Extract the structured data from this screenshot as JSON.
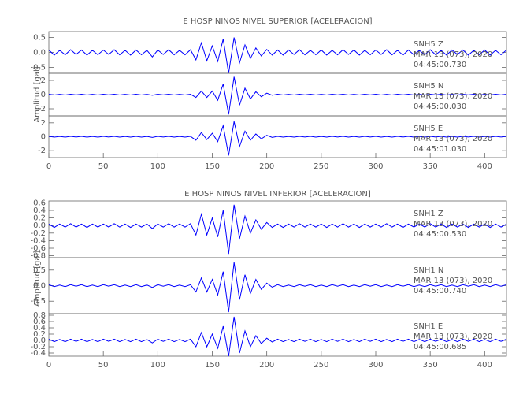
{
  "chart_data": [
    {
      "type": "line",
      "title": "E HOSP NINOS NIVEL SUPERIOR [ACELERACION]",
      "ylabel": "Amplitud [gal]",
      "color": "#0000ff",
      "xlim": [
        0,
        420
      ],
      "xticks": [
        0,
        50,
        100,
        150,
        200,
        250,
        300,
        350,
        400
      ],
      "x": [
        0,
        5,
        10,
        15,
        20,
        25,
        30,
        35,
        40,
        45,
        50,
        55,
        60,
        65,
        70,
        75,
        80,
        85,
        90,
        95,
        100,
        105,
        110,
        115,
        120,
        125,
        130,
        135,
        140,
        145,
        150,
        155,
        160,
        165,
        170,
        175,
        180,
        185,
        190,
        195,
        200,
        205,
        210,
        215,
        220,
        225,
        230,
        235,
        240,
        245,
        250,
        255,
        260,
        265,
        270,
        275,
        280,
        285,
        290,
        295,
        300,
        305,
        310,
        315,
        320,
        325,
        330,
        335,
        340,
        345,
        350,
        355,
        360,
        365,
        370,
        375,
        380,
        385,
        390,
        395,
        400,
        405,
        410,
        415,
        420
      ],
      "panels": [
        {
          "ylim": [
            -0.7,
            0.7
          ],
          "yticks": [
            -0.5,
            {
              "value": 0,
              "label": "0.0"
            },
            0.5
          ],
          "labels": [
            "SNH5   Z",
            "MAR 13 (073), 2020",
            "04:45:00.730"
          ],
          "values": [
            0.08,
            -0.09,
            0.07,
            -0.08,
            0.09,
            -0.07,
            0.08,
            -0.09,
            0.07,
            -0.08,
            0.08,
            -0.07,
            0.09,
            -0.08,
            0.07,
            -0.09,
            0.08,
            -0.08,
            0.07,
            -0.15,
            0.08,
            -0.07,
            0.09,
            -0.08,
            0.07,
            -0.08,
            0.09,
            -0.25,
            0.32,
            -0.28,
            0.22,
            -0.3,
            0.45,
            -0.7,
            0.5,
            -0.35,
            0.25,
            -0.2,
            0.15,
            -0.12,
            0.1,
            -0.09,
            0.08,
            -0.09,
            0.08,
            -0.07,
            0.09,
            -0.08,
            0.07,
            -0.08,
            0.08,
            -0.09,
            0.07,
            -0.08,
            0.09,
            -0.07,
            0.08,
            -0.09,
            0.07,
            -0.08,
            0.08,
            -0.07,
            0.09,
            -0.08,
            0.07,
            -0.09,
            0.08,
            -0.08,
            0.07,
            -0.08,
            0.09,
            -0.08,
            0.07,
            -0.09,
            0.08,
            -0.07,
            0.08,
            -0.09,
            0.07,
            -0.08,
            0.08,
            -0.09,
            0.07,
            -0.08,
            0.08
          ]
        },
        {
          "ylim": [
            -3,
            3
          ],
          "yticks": [
            -2,
            0,
            2
          ],
          "labels": [
            "SNH5   N",
            "MAR 13 (073), 2020",
            "04:45:00.030"
          ],
          "values": [
            0.05,
            -0.05,
            0.04,
            -0.05,
            0.05,
            -0.04,
            0.05,
            -0.05,
            0.04,
            -0.05,
            0.05,
            -0.04,
            0.05,
            -0.05,
            0.04,
            -0.05,
            0.05,
            -0.05,
            0.04,
            -0.1,
            0.05,
            -0.04,
            0.05,
            -0.05,
            0.04,
            -0.05,
            0.05,
            -0.4,
            0.5,
            -0.4,
            0.5,
            -0.8,
            1.5,
            -2.8,
            2.5,
            -1.5,
            0.9,
            -0.6,
            0.4,
            -0.3,
            0.2,
            -0.1,
            0.05,
            -0.05,
            0.04,
            -0.05,
            0.05,
            -0.04,
            0.05,
            -0.05,
            0.04,
            -0.05,
            0.05,
            -0.04,
            0.05,
            -0.05,
            0.04,
            -0.05,
            0.05,
            -0.04,
            0.05,
            -0.05,
            0.04,
            -0.05,
            0.05,
            -0.04,
            0.05,
            -0.05,
            0.04,
            -0.05,
            0.05,
            -0.04,
            0.05,
            -0.05,
            0.04,
            -0.05,
            0.05,
            -0.04,
            0.05,
            -0.05,
            0.04,
            -0.05,
            0.05,
            -0.04,
            0.05
          ]
        },
        {
          "ylim": [
            -3,
            3
          ],
          "yticks": [
            -2,
            0,
            2
          ],
          "labels": [
            "SNH5   E",
            "MAR 13 (073), 2020",
            "04:45:01.030"
          ],
          "values": [
            0.05,
            -0.05,
            0.04,
            -0.05,
            0.05,
            -0.04,
            0.05,
            -0.05,
            0.04,
            -0.05,
            0.05,
            -0.04,
            0.05,
            -0.05,
            0.04,
            -0.05,
            0.05,
            -0.05,
            0.04,
            -0.1,
            0.05,
            -0.04,
            0.05,
            -0.05,
            0.04,
            -0.05,
            0.05,
            -0.5,
            0.6,
            -0.4,
            0.5,
            -0.7,
            1.6,
            -2.7,
            2.2,
            -1.4,
            0.8,
            -0.5,
            0.4,
            -0.3,
            0.2,
            -0.1,
            0.05,
            -0.05,
            0.04,
            -0.05,
            0.05,
            -0.04,
            0.05,
            -0.05,
            0.04,
            -0.05,
            0.05,
            -0.04,
            0.05,
            -0.05,
            0.04,
            -0.05,
            0.05,
            -0.04,
            0.05,
            -0.05,
            0.04,
            -0.05,
            0.05,
            -0.04,
            0.05,
            -0.05,
            0.04,
            -0.05,
            0.05,
            -0.04,
            0.05,
            -0.05,
            0.04,
            -0.05,
            0.05,
            -0.04,
            0.05,
            -0.05,
            0.04,
            -0.05,
            0.05,
            -0.04,
            0.05
          ]
        }
      ]
    },
    {
      "type": "line",
      "title": "E HOSP NINOS NIVEL INFERIOR [ACELERACION]",
      "ylabel": "Amplitud [gal]",
      "color": "#0000ff",
      "xlim": [
        0,
        420
      ],
      "xticks": [
        0,
        50,
        100,
        150,
        200,
        250,
        300,
        350,
        400
      ],
      "x": [
        0,
        5,
        10,
        15,
        20,
        25,
        30,
        35,
        40,
        45,
        50,
        55,
        60,
        65,
        70,
        75,
        80,
        85,
        90,
        95,
        100,
        105,
        110,
        115,
        120,
        125,
        130,
        135,
        140,
        145,
        150,
        155,
        160,
        165,
        170,
        175,
        180,
        185,
        190,
        195,
        200,
        205,
        210,
        215,
        220,
        225,
        230,
        235,
        240,
        245,
        250,
        255,
        260,
        265,
        270,
        275,
        280,
        285,
        290,
        295,
        300,
        305,
        310,
        315,
        320,
        325,
        330,
        335,
        340,
        345,
        350,
        355,
        360,
        365,
        370,
        375,
        380,
        385,
        390,
        395,
        400,
        405,
        410,
        415,
        420
      ],
      "panels": [
        {
          "ylim": [
            -0.85,
            0.65
          ],
          "yticks": [
            -0.8,
            -0.6,
            -0.4,
            -0.2,
            {
              "value": 0,
              "label": "0.0"
            },
            0.2,
            0.4,
            0.6
          ],
          "labels": [
            "SNH1   Z",
            "MAR 13 (073), 2020",
            "04:45:00.530"
          ],
          "values": [
            0.04,
            -0.05,
            0.04,
            -0.04,
            0.05,
            -0.04,
            0.04,
            -0.05,
            0.04,
            -0.04,
            0.04,
            -0.04,
            0.05,
            -0.04,
            0.04,
            -0.05,
            0.04,
            -0.04,
            0.04,
            -0.08,
            0.04,
            -0.04,
            0.05,
            -0.04,
            0.04,
            -0.04,
            0.05,
            -0.25,
            0.3,
            -0.25,
            0.2,
            -0.3,
            0.4,
            -0.75,
            0.55,
            -0.35,
            0.25,
            -0.2,
            0.15,
            -0.1,
            0.08,
            -0.05,
            0.04,
            -0.05,
            0.04,
            -0.04,
            0.05,
            -0.04,
            0.04,
            -0.04,
            0.04,
            -0.05,
            0.04,
            -0.04,
            0.05,
            -0.04,
            0.04,
            -0.05,
            0.04,
            -0.04,
            0.04,
            -0.04,
            0.05,
            -0.04,
            0.04,
            -0.05,
            0.04,
            -0.04,
            0.04,
            -0.04,
            0.05,
            -0.04,
            0.04,
            -0.05,
            0.04,
            -0.04,
            0.04,
            -0.05,
            0.04,
            -0.04,
            0.04,
            -0.05,
            0.04,
            -0.04,
            0.04
          ]
        },
        {
          "ylim": [
            -0.9,
            0.9
          ],
          "yticks": [
            -0.5,
            {
              "value": 0,
              "label": "0.0"
            },
            0.5
          ],
          "labels": [
            "SNH1   N",
            "MAR 13 (073), 2020",
            "04:45:00.740"
          ],
          "values": [
            0.03,
            -0.03,
            0.02,
            -0.03,
            0.03,
            -0.02,
            0.03,
            -0.03,
            0.02,
            -0.03,
            0.03,
            -0.02,
            0.03,
            -0.03,
            0.02,
            -0.03,
            0.03,
            -0.03,
            0.02,
            -0.06,
            0.03,
            -0.02,
            0.03,
            -0.03,
            0.02,
            -0.03,
            0.03,
            -0.2,
            0.25,
            -0.2,
            0.2,
            -0.3,
            0.45,
            -0.85,
            0.75,
            -0.45,
            0.35,
            -0.25,
            0.2,
            -0.12,
            0.08,
            -0.05,
            0.03,
            -0.03,
            0.02,
            -0.03,
            0.03,
            -0.02,
            0.03,
            -0.03,
            0.02,
            -0.03,
            0.03,
            -0.02,
            0.03,
            -0.03,
            0.02,
            -0.03,
            0.03,
            -0.02,
            0.03,
            -0.03,
            0.02,
            -0.03,
            0.03,
            -0.02,
            0.03,
            -0.03,
            0.02,
            -0.03,
            0.03,
            -0.02,
            0.03,
            -0.03,
            0.02,
            -0.03,
            0.03,
            -0.02,
            0.03,
            -0.03,
            0.02,
            -0.03,
            0.03,
            -0.02,
            0.03
          ]
        },
        {
          "ylim": [
            -0.5,
            0.85
          ],
          "yticks": [
            -0.4,
            -0.2,
            {
              "value": 0,
              "label": "0.0"
            },
            0.2,
            0.4,
            0.6,
            0.8
          ],
          "labels": [
            "SNH1   E",
            "MAR 13 (073), 2020",
            "04:45:00.685"
          ],
          "values": [
            0.04,
            -0.04,
            0.03,
            -0.04,
            0.04,
            -0.03,
            0.04,
            -0.04,
            0.03,
            -0.04,
            0.04,
            -0.03,
            0.04,
            -0.04,
            0.03,
            -0.04,
            0.04,
            -0.04,
            0.03,
            -0.08,
            0.04,
            -0.03,
            0.04,
            -0.04,
            0.03,
            -0.04,
            0.04,
            -0.2,
            0.25,
            -0.2,
            0.2,
            -0.25,
            0.45,
            -0.5,
            0.75,
            -0.4,
            0.3,
            -0.2,
            0.15,
            -0.1,
            0.07,
            -0.05,
            0.04,
            -0.04,
            0.03,
            -0.04,
            0.04,
            -0.03,
            0.04,
            -0.04,
            0.03,
            -0.04,
            0.04,
            -0.03,
            0.04,
            -0.04,
            0.03,
            -0.04,
            0.04,
            -0.03,
            0.04,
            -0.04,
            0.03,
            -0.04,
            0.04,
            -0.03,
            0.04,
            -0.04,
            0.03,
            -0.04,
            0.04,
            -0.03,
            0.04,
            -0.04,
            0.03,
            -0.04,
            0.04,
            -0.03,
            0.04,
            -0.04,
            0.03,
            -0.04,
            0.04,
            -0.03,
            0.04
          ]
        }
      ]
    }
  ]
}
